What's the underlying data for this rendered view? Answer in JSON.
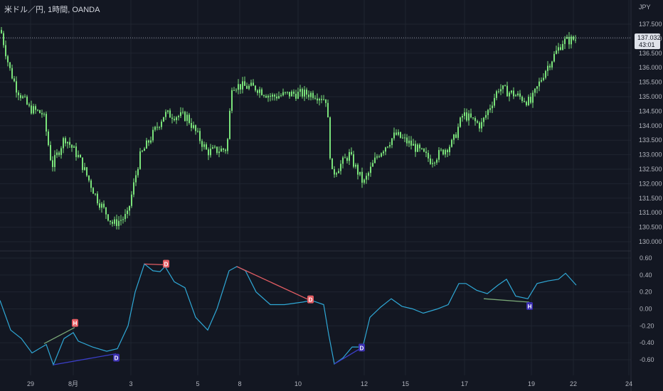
{
  "header": {
    "title": "米ドル／円, 1時間, OANDA",
    "currency": "JPY"
  },
  "colors": {
    "background": "#131722",
    "grid": "#1f2430",
    "candle": "#7ae27a",
    "oscillator": "#2fa8d6",
    "bear_line": "#e35d63",
    "bull_line": "#7aa877",
    "blue_line": "#3b3fc8",
    "tag_red": "#e35d63",
    "tag_blue": "#3b2fb0"
  },
  "price_axis": {
    "ticks": [
      "137.500",
      "137.000",
      "136.500",
      "136.000",
      "135.500",
      "135.000",
      "134.500",
      "134.000",
      "133.500",
      "133.000",
      "132.500",
      "132.000",
      "131.500",
      "131.000",
      "130.500",
      "130.000"
    ],
    "tick_values": [
      137.5,
      137.0,
      136.5,
      136.0,
      135.5,
      135.0,
      134.5,
      134.0,
      133.5,
      133.0,
      132.5,
      132.0,
      131.5,
      131.0,
      130.5,
      130.0
    ],
    "current_price": "137.032",
    "countdown": "43:01"
  },
  "osc_axis": {
    "ticks": [
      "0.60",
      "0.40",
      "0.20",
      "0.00",
      "-0.20",
      "-0.40",
      "-0.60"
    ],
    "tick_values": [
      0.6,
      0.4,
      0.2,
      0.0,
      -0.2,
      -0.4,
      -0.6
    ]
  },
  "time_axis": {
    "labels": [
      "29",
      "8月",
      "3",
      "5",
      "8",
      "10",
      "12",
      "15",
      "17",
      "19",
      "22",
      "24"
    ]
  },
  "chart_data": [
    {
      "type": "candlestick",
      "title": "米ドル／円, 1時間, OANDA",
      "y_unit": "JPY",
      "ylim": [
        129.8,
        137.9
      ],
      "x": [
        "29",
        "8月",
        "3",
        "5",
        "8",
        "10",
        "12",
        "15",
        "17",
        "19",
        "22"
      ],
      "close": [
        135.4,
        133.5,
        130.9,
        134.0,
        135.3,
        135.0,
        132.8,
        133.6,
        134.3,
        135.0,
        137.0
      ],
      "current_price": 137.032
    },
    {
      "type": "line",
      "ylim": [
        -0.72,
        0.68
      ],
      "x": [
        "29",
        "8月",
        "3",
        "5",
        "8",
        "10",
        "12",
        "15",
        "17",
        "19",
        "22"
      ],
      "values": [
        -0.4,
        -0.47,
        -0.5,
        0.4,
        0.45,
        0.1,
        -0.55,
        0.12,
        0.3,
        0.16,
        0.3
      ],
      "annotations": [
        {
          "label": "H",
          "color": "red",
          "line": "bull"
        },
        {
          "label": "D",
          "color": "blue",
          "line": "blue"
        },
        {
          "label": "D",
          "color": "red",
          "line": "bear"
        },
        {
          "label": "D",
          "color": "red",
          "line": "bear"
        },
        {
          "label": "D",
          "color": "blue",
          "line": "blue"
        },
        {
          "label": "H",
          "color": "blue",
          "line": "bull"
        }
      ]
    }
  ]
}
